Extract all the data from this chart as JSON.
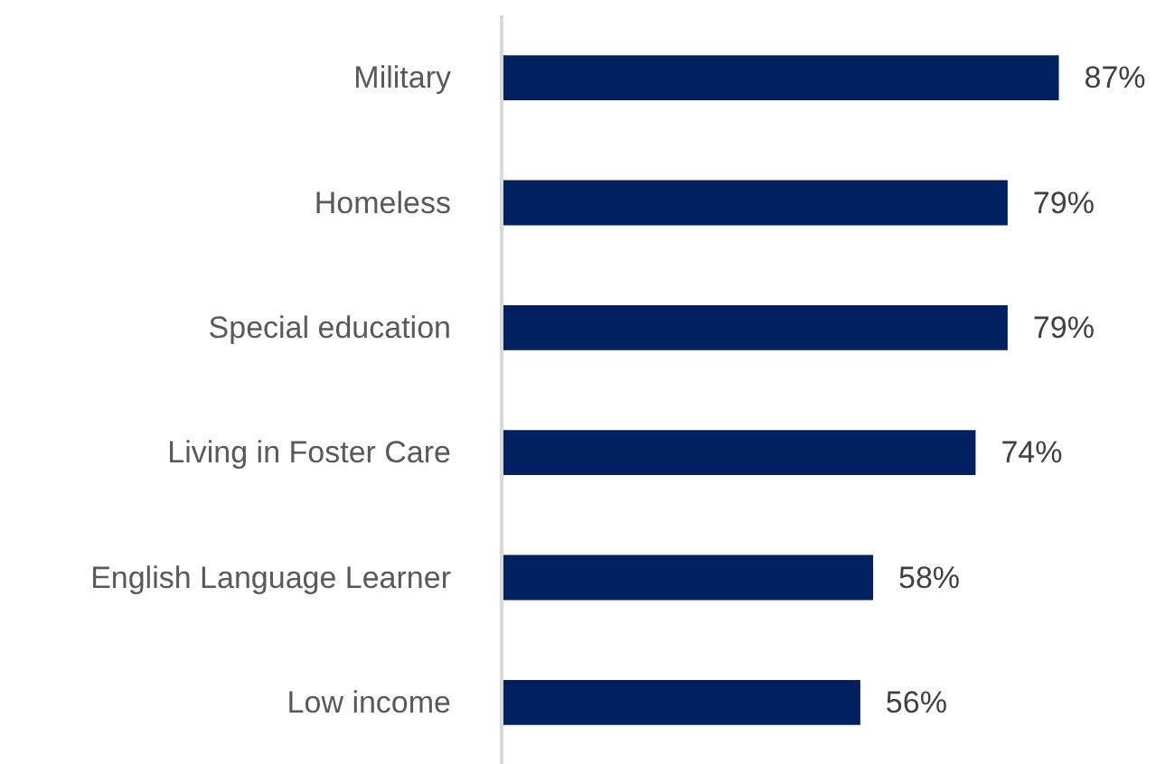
{
  "chart_data": {
    "type": "bar",
    "orientation": "horizontal",
    "categories": [
      "Military",
      "Homeless",
      "Special education",
      "Living in Foster Care",
      "English Language Learner",
      "Low income"
    ],
    "values": [
      87,
      79,
      79,
      74,
      58,
      56
    ],
    "value_labels": [
      "87%",
      "79%",
      "79%",
      "74%",
      "58%",
      "56%"
    ],
    "color": "#002060",
    "grid": false
  }
}
